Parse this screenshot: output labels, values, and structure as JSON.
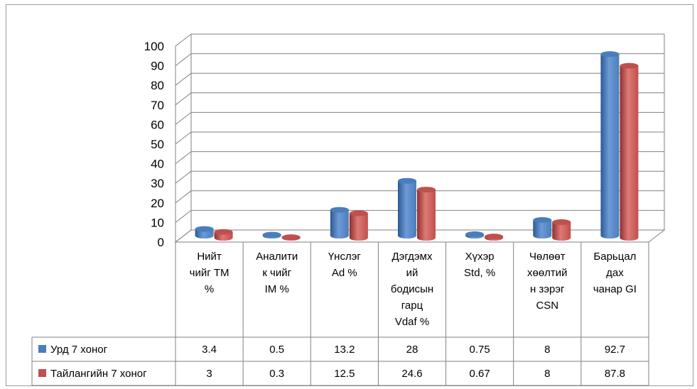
{
  "chart_data": {
    "type": "bar",
    "style": "3d-cylinder",
    "ylim": [
      0,
      100
    ],
    "yticks": [
      "0",
      "10",
      "20",
      "30",
      "40",
      "50",
      "60",
      "70",
      "80",
      "90",
      "100"
    ],
    "categories": [
      [
        "Нийт",
        "чийг TM",
        "%"
      ],
      [
        "Аналити",
        "к чийг",
        "IM %"
      ],
      [
        "Үнслэг",
        "Ad %"
      ],
      [
        "Дэгдэмх",
        "ий",
        "бодисын",
        "гарц",
        "Vdaf %"
      ],
      [
        "Хүхэр",
        "Std, %"
      ],
      [
        "Чөлөөт",
        "хөөлтий",
        "н зэрэг",
        "CSN"
      ],
      [
        "Барьцал",
        "дах",
        "чанар GI"
      ]
    ],
    "series": [
      {
        "name": "Урд 7 хоног",
        "color": "#4a7ebb",
        "values": [
          3.4,
          0.5,
          13.2,
          28,
          0.75,
          8,
          92.7
        ],
        "labels": [
          "3.4",
          "0.5",
          "13.2",
          "28",
          "0.75",
          "8",
          "92.7"
        ]
      },
      {
        "name": "Тайлангийн 7 хоног",
        "color": "#c0504d",
        "values": [
          3,
          0.3,
          12.5,
          24.6,
          0.67,
          8,
          87.8
        ],
        "labels": [
          "3",
          "0.3",
          "12.5",
          "24.6",
          "0.67",
          "8",
          "87.8"
        ]
      }
    ],
    "legend": "data-table",
    "grid": true
  }
}
